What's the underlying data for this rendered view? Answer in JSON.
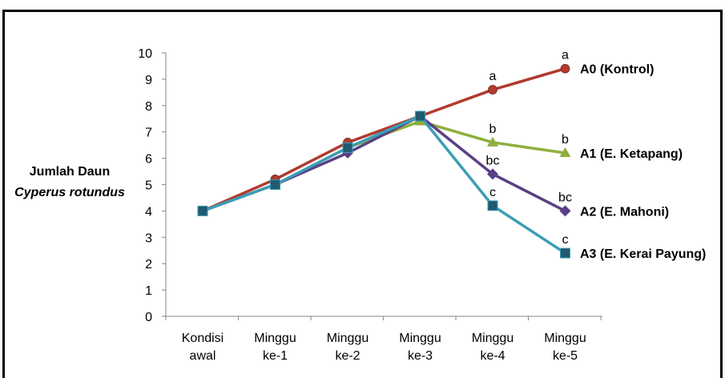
{
  "chart_data": {
    "type": "line",
    "ylabel_lines": [
      "Jumlah Daun",
      "Cyperus rotundus"
    ],
    "xlabel": "",
    "ylim": [
      0,
      10
    ],
    "yticks": [
      0,
      1,
      2,
      3,
      4,
      5,
      6,
      7,
      8,
      9,
      10
    ],
    "categories": [
      [
        "Kondisi",
        "awal"
      ],
      [
        "Minggu",
        "ke-1"
      ],
      [
        "Minggu",
        "ke-2"
      ],
      [
        "Minggu",
        "ke-3"
      ],
      [
        "Minggu",
        "ke-4"
      ],
      [
        "Minggu",
        "ke-5"
      ]
    ],
    "grid": false,
    "legend": "right, at series ends",
    "series": [
      {
        "name": "A0 (Kontrol)",
        "color": "#B03A2E",
        "marker": "circle",
        "values": [
          4.0,
          5.2,
          6.6,
          7.6,
          8.6,
          9.4
        ],
        "labels": [
          "",
          "",
          "",
          "",
          "a",
          "a"
        ]
      },
      {
        "name": "A1 (E. Ketapang)",
        "color": "#8FAF3C",
        "marker": "triangle",
        "values": [
          4.0,
          5.0,
          6.4,
          7.4,
          6.6,
          6.2
        ],
        "labels": [
          "",
          "",
          "",
          "",
          "b",
          "b"
        ]
      },
      {
        "name": "A2 (E. Mahoni)",
        "color": "#5B3F86",
        "marker": "diamond",
        "values": [
          4.0,
          5.0,
          6.2,
          7.6,
          5.4,
          4.0
        ],
        "labels": [
          "",
          "",
          "",
          "",
          "bc",
          "bc"
        ]
      },
      {
        "name": "A3 (E. Kerai Payung)",
        "color": "#3B9DB5",
        "marker": "square",
        "values": [
          4.0,
          5.0,
          6.4,
          7.6,
          4.2,
          2.4
        ],
        "labels": [
          "",
          "",
          "",
          "",
          "c",
          "c"
        ]
      }
    ]
  }
}
